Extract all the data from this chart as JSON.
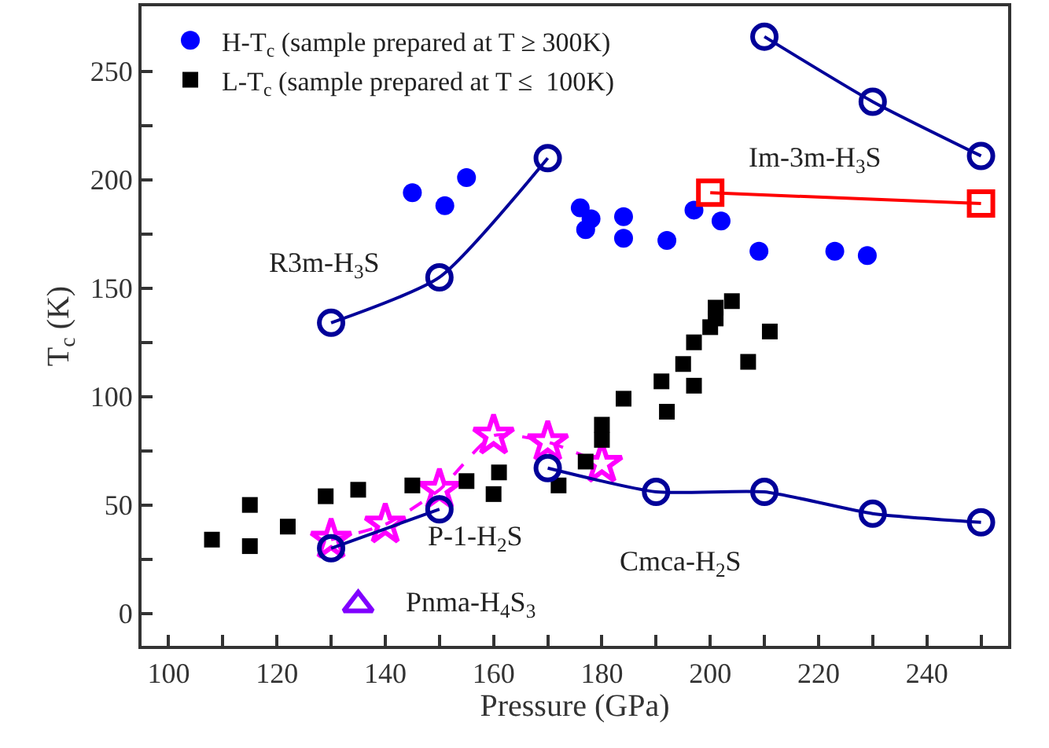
{
  "chart_data": {
    "type": "scatter",
    "xlabel": "Pressure (GPa)",
    "ylabel": "T$_{c}$ (K)",
    "xlim": [
      95,
      255
    ],
    "ylim": [
      -15,
      280
    ],
    "xticks": [
      100,
      {
        "value": 110,
        "label": null
      },
      120,
      {
        "value": 130,
        "label": null
      },
      140,
      {
        "value": 150,
        "label": null
      },
      160,
      {
        "value": 170,
        "label": null
      },
      180,
      {
        "value": 190,
        "label": null
      },
      200,
      {
        "value": 210,
        "label": null
      },
      220,
      {
        "value": 230,
        "label": null
      },
      240,
      {
        "value": 250,
        "label": null
      }
    ],
    "yticks": [
      0,
      {
        "value": 25,
        "label": null
      },
      50,
      {
        "value": 75,
        "label": null
      },
      100,
      {
        "value": 125,
        "label": null
      },
      150,
      {
        "value": 175,
        "label": null
      },
      200,
      {
        "value": 225,
        "label": null
      },
      250
    ],
    "grid": false,
    "legend": "top left",
    "series": [
      {
        "type": "line",
        "marker": "star",
        "line_style": "dashed",
        "color": "#ff00ff",
        "x": [
          130,
          140,
          150,
          160,
          170,
          180
        ],
        "values": [
          34,
          41,
          57,
          82,
          79,
          69
        ]
      },
      {
        "name": "H-T$_{c}$ (sample prepared at T ≥ 300K)",
        "type": "scatter",
        "marker": "circle",
        "color": "#0000ff",
        "x": [
          145,
          151,
          155,
          176,
          178,
          177,
          184,
          184,
          192,
          197,
          202,
          209,
          223,
          229
        ],
        "values": [
          194,
          188,
          201,
          187,
          182,
          177,
          183,
          173,
          172,
          186,
          181,
          167,
          167,
          165
        ]
      },
      {
        "name": "L-T$_{c}$ (sample prepared at T ≤  100K)",
        "type": "scatter",
        "marker": "square",
        "color": "#000000",
        "x": [
          108,
          115,
          115,
          122,
          129,
          135,
          145,
          155,
          160,
          161,
          172,
          177,
          180,
          180,
          184,
          191,
          192,
          195,
          197,
          197,
          200,
          201,
          201,
          204,
          207,
          211
        ],
        "values": [
          34,
          50,
          31,
          40,
          54,
          57,
          59,
          61,
          55,
          65,
          59,
          70,
          80,
          87,
          99,
          107,
          93,
          115,
          105,
          125,
          132,
          136,
          141,
          144,
          116,
          130
        ]
      },
      {
        "type": "line",
        "marker": "circle",
        "line_style": "solid",
        "color": "#000099",
        "x": [
          210,
          230,
          250
        ],
        "values": [
          266,
          236,
          211
        ]
      },
      {
        "name": "R3m-H$_{3}$S",
        "type": "line",
        "marker": "circle",
        "line_style": "solid",
        "color": "#000099",
        "x": [
          130,
          150,
          170
        ],
        "values": [
          134,
          155,
          210
        ]
      },
      {
        "name": "Im-3m-H$_{3}$S",
        "type": "line",
        "marker": "square",
        "line_style": "solid",
        "color": "#ff0000",
        "x": [
          200,
          250
        ],
        "values": [
          194,
          189
        ]
      },
      {
        "name": "Cmca-H$_{2}$S",
        "type": "line",
        "marker": "circle",
        "line_style": "solid",
        "color": "#000099",
        "x": [
          170,
          190,
          210,
          230,
          250
        ],
        "values": [
          67,
          56,
          56,
          46,
          42
        ]
      },
      {
        "name": "P-1-H$_{2}$S",
        "type": "line",
        "marker": "circle",
        "line_style": "solid",
        "color": "#000099",
        "x": [
          130,
          150
        ],
        "values": [
          30,
          48
        ]
      },
      {
        "name": "Pnma-H$_{4}$S$_{3}$",
        "type": "line",
        "marker": "triangle",
        "line_style": "none",
        "color": "#8000ff",
        "x": [
          135
        ],
        "values": [
          4
        ]
      }
    ]
  }
}
